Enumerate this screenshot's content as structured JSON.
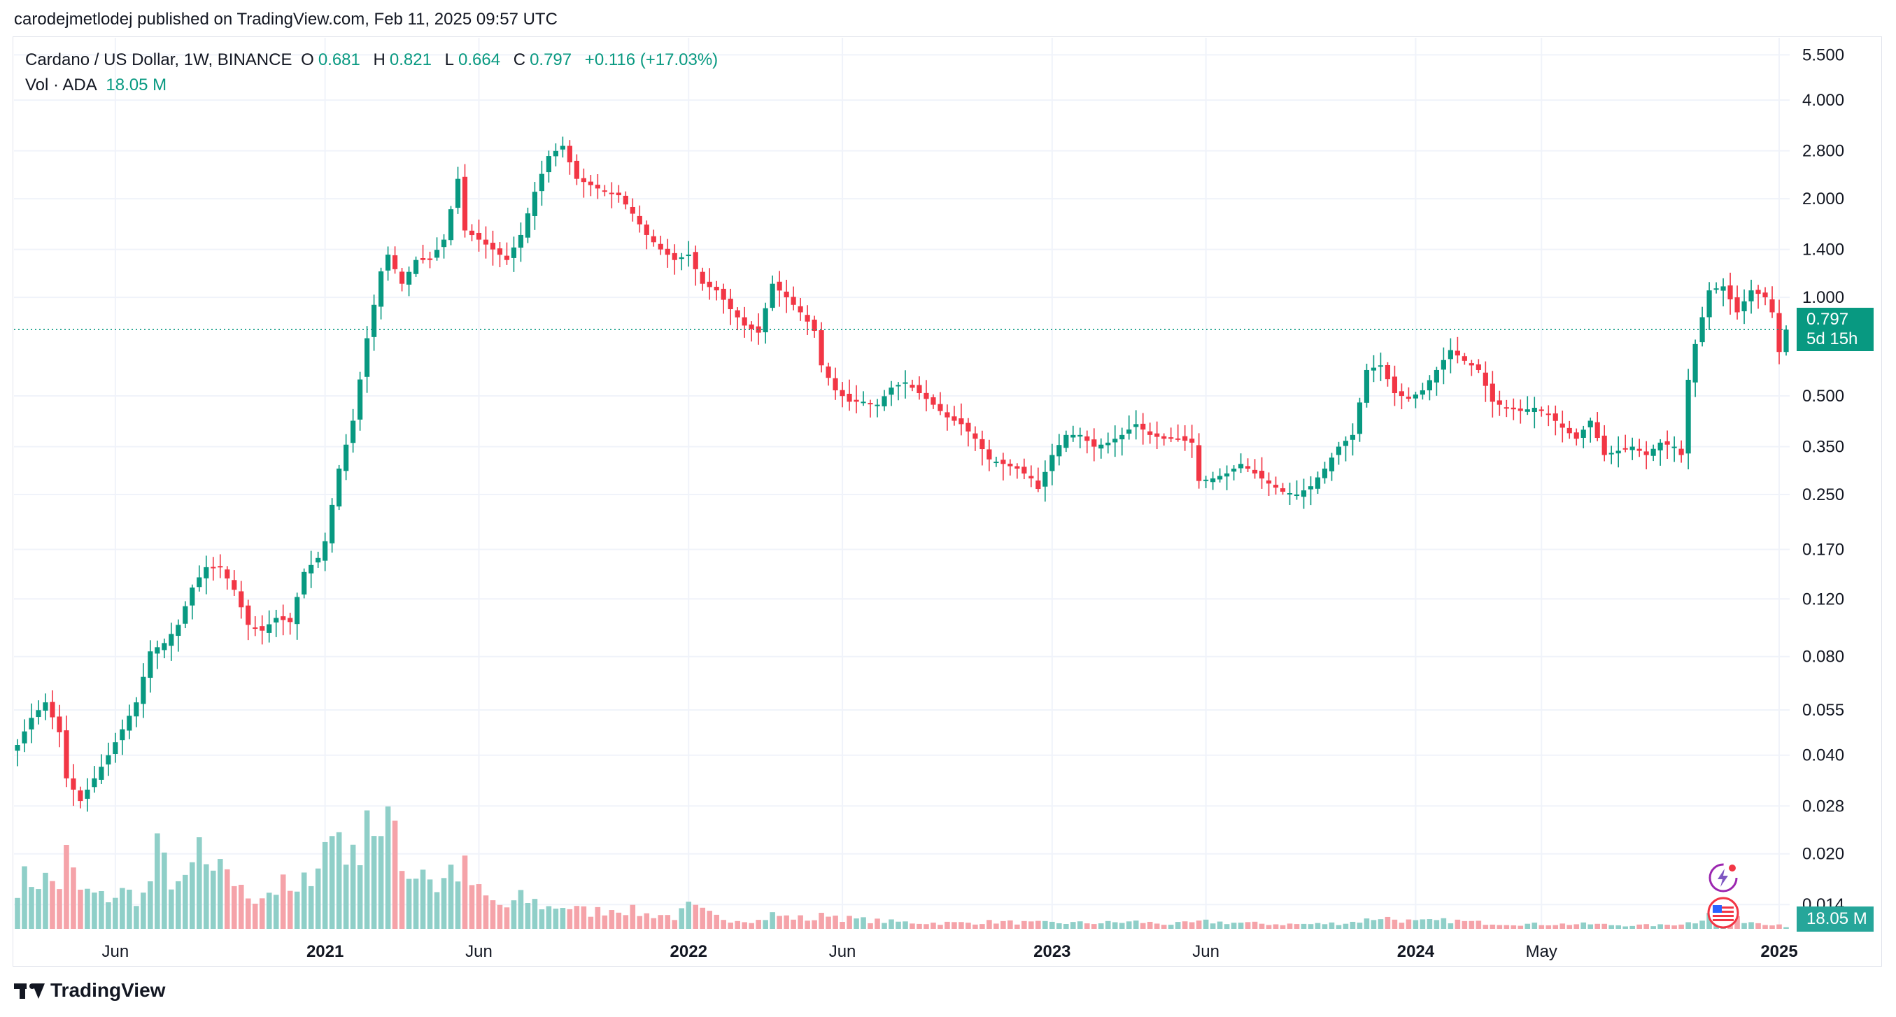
{
  "published_line": "carodejmetlodej published on TradingView.com, Feb 11, 2025 09:57 UTC",
  "legend": {
    "symbol": "Cardano / US Dollar, 1W, BINANCE",
    "o_label": "O",
    "o_value": "0.681",
    "h_label": "H",
    "h_value": "0.821",
    "l_label": "L",
    "l_value": "0.664",
    "c_label": "C",
    "c_value": "0.797",
    "change": "+0.116 (+17.03%)",
    "vol_label": "Vol · ADA",
    "vol_value": "18.05 M"
  },
  "price_tag": {
    "price": "0.797",
    "countdown": "5d 15h"
  },
  "vol_tag": "18.05 M",
  "brand": "TradingView",
  "icons": [
    "lightning-icon",
    "us-flag-icon"
  ],
  "colors": {
    "up": "#089981",
    "down": "#f23645",
    "vol_up": "#8fcfc8",
    "vol_down": "#f5a3a9",
    "grid": "#f0f3fa"
  },
  "chart_data": {
    "type": "candlestick",
    "scale": "log",
    "y_ticks": [
      "5.500",
      "4.000",
      "2.800",
      "2.000",
      "1.400",
      "1.000",
      "0.500",
      "0.350",
      "0.250",
      "0.170",
      "0.120",
      "0.080",
      "0.055",
      "0.040",
      "0.028",
      "0.020",
      "0.014"
    ],
    "x_ticks": [
      {
        "label": "Jun",
        "bold": false,
        "t": 14
      },
      {
        "label": "2021",
        "bold": true,
        "t": 44
      },
      {
        "label": "Jun",
        "bold": false,
        "t": 66
      },
      {
        "label": "2022",
        "bold": true,
        "t": 96
      },
      {
        "label": "Jun",
        "bold": false,
        "t": 118
      },
      {
        "label": "2023",
        "bold": true,
        "t": 148
      },
      {
        "label": "Jun",
        "bold": false,
        "t": 170
      },
      {
        "label": "2024",
        "bold": true,
        "t": 200
      },
      {
        "label": "May",
        "bold": false,
        "t": 218
      },
      {
        "label": "2025",
        "bold": true,
        "t": 252
      }
    ],
    "current_price": 0.797,
    "close_anchors": [
      [
        0,
        0.043
      ],
      [
        2,
        0.052
      ],
      [
        4,
        0.058
      ],
      [
        6,
        0.047
      ],
      [
        7,
        0.034
      ],
      [
        9,
        0.029
      ],
      [
        11,
        0.034
      ],
      [
        13,
        0.04
      ],
      [
        15,
        0.048
      ],
      [
        17,
        0.058
      ],
      [
        19,
        0.083
      ],
      [
        21,
        0.088
      ],
      [
        23,
        0.1
      ],
      [
        25,
        0.13
      ],
      [
        27,
        0.15
      ],
      [
        29,
        0.15
      ],
      [
        31,
        0.128
      ],
      [
        33,
        0.1
      ],
      [
        35,
        0.096
      ],
      [
        37,
        0.105
      ],
      [
        39,
        0.102
      ],
      [
        41,
        0.145
      ],
      [
        43,
        0.16
      ],
      [
        44,
        0.18
      ],
      [
        46,
        0.3
      ],
      [
        48,
        0.42
      ],
      [
        50,
        0.75
      ],
      [
        52,
        1.2
      ],
      [
        53,
        1.35
      ],
      [
        55,
        1.1
      ],
      [
        57,
        1.3
      ],
      [
        59,
        1.3
      ],
      [
        61,
        1.5
      ],
      [
        63,
        2.3
      ],
      [
        64,
        1.6
      ],
      [
        66,
        1.5
      ],
      [
        68,
        1.4
      ],
      [
        70,
        1.3
      ],
      [
        72,
        1.55
      ],
      [
        74,
        2.1
      ],
      [
        76,
        2.7
      ],
      [
        78,
        2.9
      ],
      [
        80,
        2.3
      ],
      [
        82,
        2.2
      ],
      [
        84,
        2.1
      ],
      [
        86,
        2.05
      ],
      [
        88,
        1.8
      ],
      [
        90,
        1.55
      ],
      [
        92,
        1.4
      ],
      [
        94,
        1.3
      ],
      [
        96,
        1.35
      ],
      [
        98,
        1.1
      ],
      [
        100,
        1.05
      ],
      [
        102,
        0.92
      ],
      [
        104,
        0.82
      ],
      [
        106,
        0.78
      ],
      [
        108,
        1.1
      ],
      [
        110,
        1.0
      ],
      [
        112,
        0.9
      ],
      [
        114,
        0.79
      ],
      [
        115,
        0.62
      ],
      [
        117,
        0.52
      ],
      [
        119,
        0.48
      ],
      [
        121,
        0.48
      ],
      [
        123,
        0.47
      ],
      [
        125,
        0.53
      ],
      [
        127,
        0.55
      ],
      [
        129,
        0.51
      ],
      [
        131,
        0.47
      ],
      [
        133,
        0.43
      ],
      [
        135,
        0.41
      ],
      [
        137,
        0.37
      ],
      [
        139,
        0.32
      ],
      [
        141,
        0.31
      ],
      [
        143,
        0.3
      ],
      [
        145,
        0.28
      ],
      [
        146,
        0.26
      ],
      [
        148,
        0.33
      ],
      [
        150,
        0.38
      ],
      [
        152,
        0.38
      ],
      [
        154,
        0.35
      ],
      [
        156,
        0.36
      ],
      [
        158,
        0.38
      ],
      [
        160,
        0.41
      ],
      [
        162,
        0.38
      ],
      [
        164,
        0.37
      ],
      [
        166,
        0.37
      ],
      [
        168,
        0.36
      ],
      [
        169,
        0.275
      ],
      [
        171,
        0.28
      ],
      [
        173,
        0.29
      ],
      [
        175,
        0.31
      ],
      [
        177,
        0.29
      ],
      [
        179,
        0.27
      ],
      [
        181,
        0.255
      ],
      [
        183,
        0.25
      ],
      [
        185,
        0.265
      ],
      [
        187,
        0.3
      ],
      [
        189,
        0.35
      ],
      [
        191,
        0.38
      ],
      [
        193,
        0.6
      ],
      [
        195,
        0.62
      ],
      [
        197,
        0.51
      ],
      [
        199,
        0.49
      ],
      [
        201,
        0.52
      ],
      [
        203,
        0.6
      ],
      [
        205,
        0.69
      ],
      [
        207,
        0.64
      ],
      [
        209,
        0.6
      ],
      [
        211,
        0.48
      ],
      [
        213,
        0.46
      ],
      [
        215,
        0.45
      ],
      [
        217,
        0.46
      ],
      [
        219,
        0.44
      ],
      [
        221,
        0.4
      ],
      [
        223,
        0.37
      ],
      [
        225,
        0.42
      ],
      [
        227,
        0.33
      ],
      [
        229,
        0.34
      ],
      [
        231,
        0.35
      ],
      [
        233,
        0.33
      ],
      [
        235,
        0.36
      ],
      [
        237,
        0.35
      ],
      [
        238,
        0.33
      ],
      [
        239,
        0.56
      ],
      [
        240,
        0.72
      ],
      [
        242,
        1.05
      ],
      [
        244,
        1.08
      ],
      [
        246,
        0.9
      ],
      [
        248,
        1.05
      ],
      [
        250,
        1.0
      ],
      [
        251,
        0.9
      ],
      [
        252,
        0.681
      ],
      [
        253,
        0.797
      ]
    ],
    "volume_anchors": [
      [
        0,
        40
      ],
      [
        3,
        42
      ],
      [
        6,
        38
      ],
      [
        7,
        60
      ],
      [
        9,
        32
      ],
      [
        12,
        26
      ],
      [
        15,
        30
      ],
      [
        18,
        27
      ],
      [
        20,
        62
      ],
      [
        22,
        45
      ],
      [
        24,
        35
      ],
      [
        26,
        70
      ],
      [
        28,
        38
      ],
      [
        30,
        55
      ],
      [
        32,
        30
      ],
      [
        34,
        28
      ],
      [
        36,
        32
      ],
      [
        38,
        35
      ],
      [
        40,
        27
      ],
      [
        42,
        52
      ],
      [
        44,
        70
      ],
      [
        46,
        86
      ],
      [
        48,
        55
      ],
      [
        50,
        110
      ],
      [
        52,
        70
      ],
      [
        54,
        90
      ],
      [
        56,
        45
      ],
      [
        58,
        55
      ],
      [
        60,
        35
      ],
      [
        62,
        50
      ],
      [
        64,
        48
      ],
      [
        66,
        30
      ],
      [
        68,
        22
      ],
      [
        70,
        18
      ],
      [
        72,
        25
      ],
      [
        74,
        22
      ],
      [
        76,
        18
      ],
      [
        78,
        20
      ],
      [
        80,
        16
      ],
      [
        82,
        14
      ],
      [
        84,
        16
      ],
      [
        86,
        18
      ],
      [
        88,
        15
      ],
      [
        90,
        12
      ],
      [
        92,
        12
      ],
      [
        94,
        10
      ],
      [
        96,
        18
      ],
      [
        98,
        14
      ],
      [
        100,
        10
      ],
      [
        102,
        8
      ],
      [
        104,
        8
      ],
      [
        106,
        7
      ],
      [
        108,
        12
      ],
      [
        110,
        10
      ],
      [
        112,
        9
      ],
      [
        114,
        8
      ],
      [
        116,
        14
      ],
      [
        118,
        9
      ],
      [
        120,
        8
      ],
      [
        125,
        6
      ],
      [
        130,
        5
      ],
      [
        135,
        5
      ],
      [
        140,
        6
      ],
      [
        145,
        5
      ],
      [
        150,
        5
      ],
      [
        155,
        5
      ],
      [
        160,
        6
      ],
      [
        165,
        4
      ],
      [
        170,
        6
      ],
      [
        175,
        5
      ],
      [
        180,
        4
      ],
      [
        185,
        4
      ],
      [
        190,
        5
      ],
      [
        195,
        10
      ],
      [
        200,
        6
      ],
      [
        205,
        7
      ],
      [
        210,
        5
      ],
      [
        215,
        4
      ],
      [
        220,
        4
      ],
      [
        225,
        4
      ],
      [
        230,
        3
      ],
      [
        235,
        3
      ],
      [
        240,
        6
      ],
      [
        242,
        16
      ],
      [
        244,
        10
      ],
      [
        246,
        8
      ],
      [
        248,
        6
      ],
      [
        250,
        5
      ],
      [
        252,
        4
      ],
      [
        253,
        2
      ]
    ],
    "volume_values": [
      [
        0,
        40
      ],
      [
        2,
        62
      ],
      [
        3,
        35
      ],
      [
        4,
        52
      ],
      [
        5,
        48
      ],
      [
        6,
        38
      ],
      [
        7,
        42
      ],
      [
        8,
        70
      ],
      [
        9,
        30
      ],
      [
        10,
        22
      ],
      [
        11,
        28
      ],
      [
        12,
        26
      ],
      [
        13,
        24
      ],
      [
        14,
        32
      ],
      [
        15,
        30
      ],
      [
        16,
        28
      ],
      [
        17,
        25
      ],
      [
        18,
        22
      ],
      [
        19,
        60
      ],
      [
        20,
        65
      ],
      [
        21,
        45
      ],
      [
        22,
        28
      ],
      [
        23,
        30
      ],
      [
        24,
        72
      ],
      [
        25,
        40
      ],
      [
        26,
        58
      ],
      [
        27,
        36
      ],
      [
        28,
        26
      ],
      [
        29,
        30
      ],
      [
        30,
        30
      ],
      [
        31,
        24
      ],
      [
        32,
        20
      ],
      [
        33,
        16
      ],
      [
        34,
        18
      ],
      [
        35,
        16
      ],
      [
        36,
        16
      ],
      [
        37,
        14
      ],
      [
        38,
        13
      ],
      [
        39,
        30
      ],
      [
        40,
        28
      ],
      [
        41,
        52
      ],
      [
        42,
        72
      ],
      [
        43,
        44
      ],
      [
        44,
        70
      ],
      [
        45,
        42
      ],
      [
        46,
        80
      ],
      [
        47,
        48
      ],
      [
        48,
        96
      ],
      [
        49,
        66
      ],
      [
        50,
        120
      ],
      [
        51,
        70
      ],
      [
        52,
        100
      ],
      [
        53,
        50
      ],
      [
        54,
        42
      ],
      [
        55,
        45
      ],
      [
        56,
        32
      ],
      [
        57,
        40
      ],
      [
        58,
        34
      ],
      [
        59,
        36
      ],
      [
        60,
        32
      ],
      [
        61,
        40
      ],
      [
        62,
        55
      ],
      [
        63,
        58
      ],
      [
        64,
        30
      ],
      [
        65,
        24
      ],
      [
        66,
        16
      ],
      [
        67,
        17
      ],
      [
        68,
        14
      ],
      [
        69,
        12
      ],
      [
        70,
        10
      ],
      [
        71,
        12
      ],
      [
        72,
        14
      ],
      [
        73,
        16
      ],
      [
        74,
        20
      ],
      [
        75,
        22
      ],
      [
        76,
        20
      ],
      [
        77,
        18
      ],
      [
        78,
        18
      ],
      [
        79,
        12
      ],
      [
        80,
        10
      ],
      [
        81,
        10
      ],
      [
        82,
        12
      ],
      [
        83,
        11
      ],
      [
        84,
        13
      ],
      [
        85,
        10
      ],
      [
        86,
        13
      ],
      [
        87,
        10
      ],
      [
        88,
        8
      ],
      [
        89,
        7
      ],
      [
        90,
        10
      ],
      [
        91,
        10
      ],
      [
        92,
        9
      ],
      [
        93,
        9
      ],
      [
        94,
        24
      ],
      [
        95,
        10
      ],
      [
        96,
        10
      ],
      [
        97,
        9
      ],
      [
        98,
        9
      ],
      [
        99,
        8
      ],
      [
        100,
        11
      ],
      [
        101,
        10
      ],
      [
        102,
        7
      ],
      [
        103,
        6
      ],
      [
        104,
        6
      ],
      [
        105,
        5
      ],
      [
        106,
        8
      ],
      [
        107,
        6
      ],
      [
        108,
        6
      ],
      [
        109,
        20
      ],
      [
        110,
        6
      ],
      [
        111,
        13
      ],
      [
        112,
        8
      ],
      [
        113,
        6
      ],
      [
        114,
        7
      ],
      [
        115,
        7
      ],
      [
        116,
        6
      ],
      [
        117,
        6
      ],
      [
        118,
        7
      ],
      [
        119,
        6
      ],
      [
        120,
        5
      ]
    ]
  }
}
